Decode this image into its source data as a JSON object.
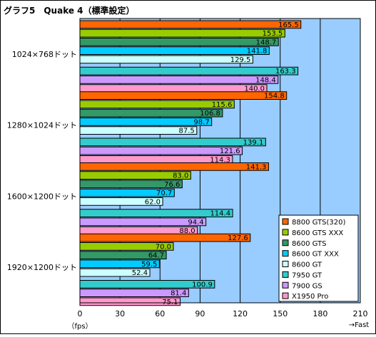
{
  "chart_data": {
    "type": "bar",
    "orientation": "horizontal",
    "title": "グラフ5　Quake 4（標準設定）",
    "categories": [
      "1024×768ドット",
      "1280×1024ドット",
      "1600×1200ドット",
      "1920×1200ドット"
    ],
    "series": [
      {
        "name": "8800 GTS(320)",
        "color": "#ff6600",
        "values": [
          165.5,
          154.8,
          141.3,
          127.6
        ]
      },
      {
        "name": "8600 GTS XXX",
        "color": "#99cc00",
        "values": [
          153.5,
          115.6,
          83.0,
          70.0
        ]
      },
      {
        "name": "8600 GTS",
        "color": "#339966",
        "values": [
          148.7,
          106.8,
          76.6,
          64.7
        ]
      },
      {
        "name": "8600 GT XXX",
        "color": "#00ccff",
        "values": [
          141.8,
          98.7,
          70.7,
          59.5
        ]
      },
      {
        "name": "8600 GT",
        "color": "#ccffff",
        "values": [
          129.5,
          87.5,
          62.0,
          52.4
        ]
      },
      {
        "name": "7950 GT",
        "color": "#33cccc",
        "values": [
          163.3,
          139.1,
          114.4,
          100.9
        ]
      },
      {
        "name": "7900 GS",
        "color": "#cc99ff",
        "values": [
          148.4,
          121.6,
          94.4,
          81.4
        ]
      },
      {
        "name": "X1950 Pro",
        "color": "#ff99cc",
        "values": [
          140.0,
          114.3,
          88.0,
          75.1
        ]
      }
    ],
    "value_labels": [
      [
        "165.5",
        "154.8",
        "141.3",
        "127.6"
      ],
      [
        "153.5",
        "115.6",
        "83.0",
        "70.0"
      ],
      [
        "148.7",
        "106.8",
        "76.6",
        "64.7"
      ],
      [
        "141.8",
        "98.7",
        "70.7",
        "59.5"
      ],
      [
        "129.5",
        "87.5",
        "62.0",
        "52.4"
      ],
      [
        "163.3",
        "139.1",
        "114.4",
        "100.9"
      ],
      [
        "148.4",
        "121.6",
        "94.4",
        "81.4"
      ],
      [
        "140.0",
        "114.3",
        "88.0",
        "75.1"
      ]
    ],
    "xlim": [
      0,
      210
    ],
    "xticks": [
      0,
      30,
      60,
      90,
      120,
      150,
      180,
      210
    ],
    "xtick_labels": [
      "0",
      "30",
      "60",
      "90",
      "120",
      "150",
      "180",
      "210"
    ],
    "xlabel_left": "（fps）",
    "xlabel_right": "→Fast",
    "grid": true,
    "legend_position": "bottom-right",
    "colors": {
      "plot_background": "#99ccff",
      "frame": "#000000",
      "gridline": "#000000"
    }
  }
}
